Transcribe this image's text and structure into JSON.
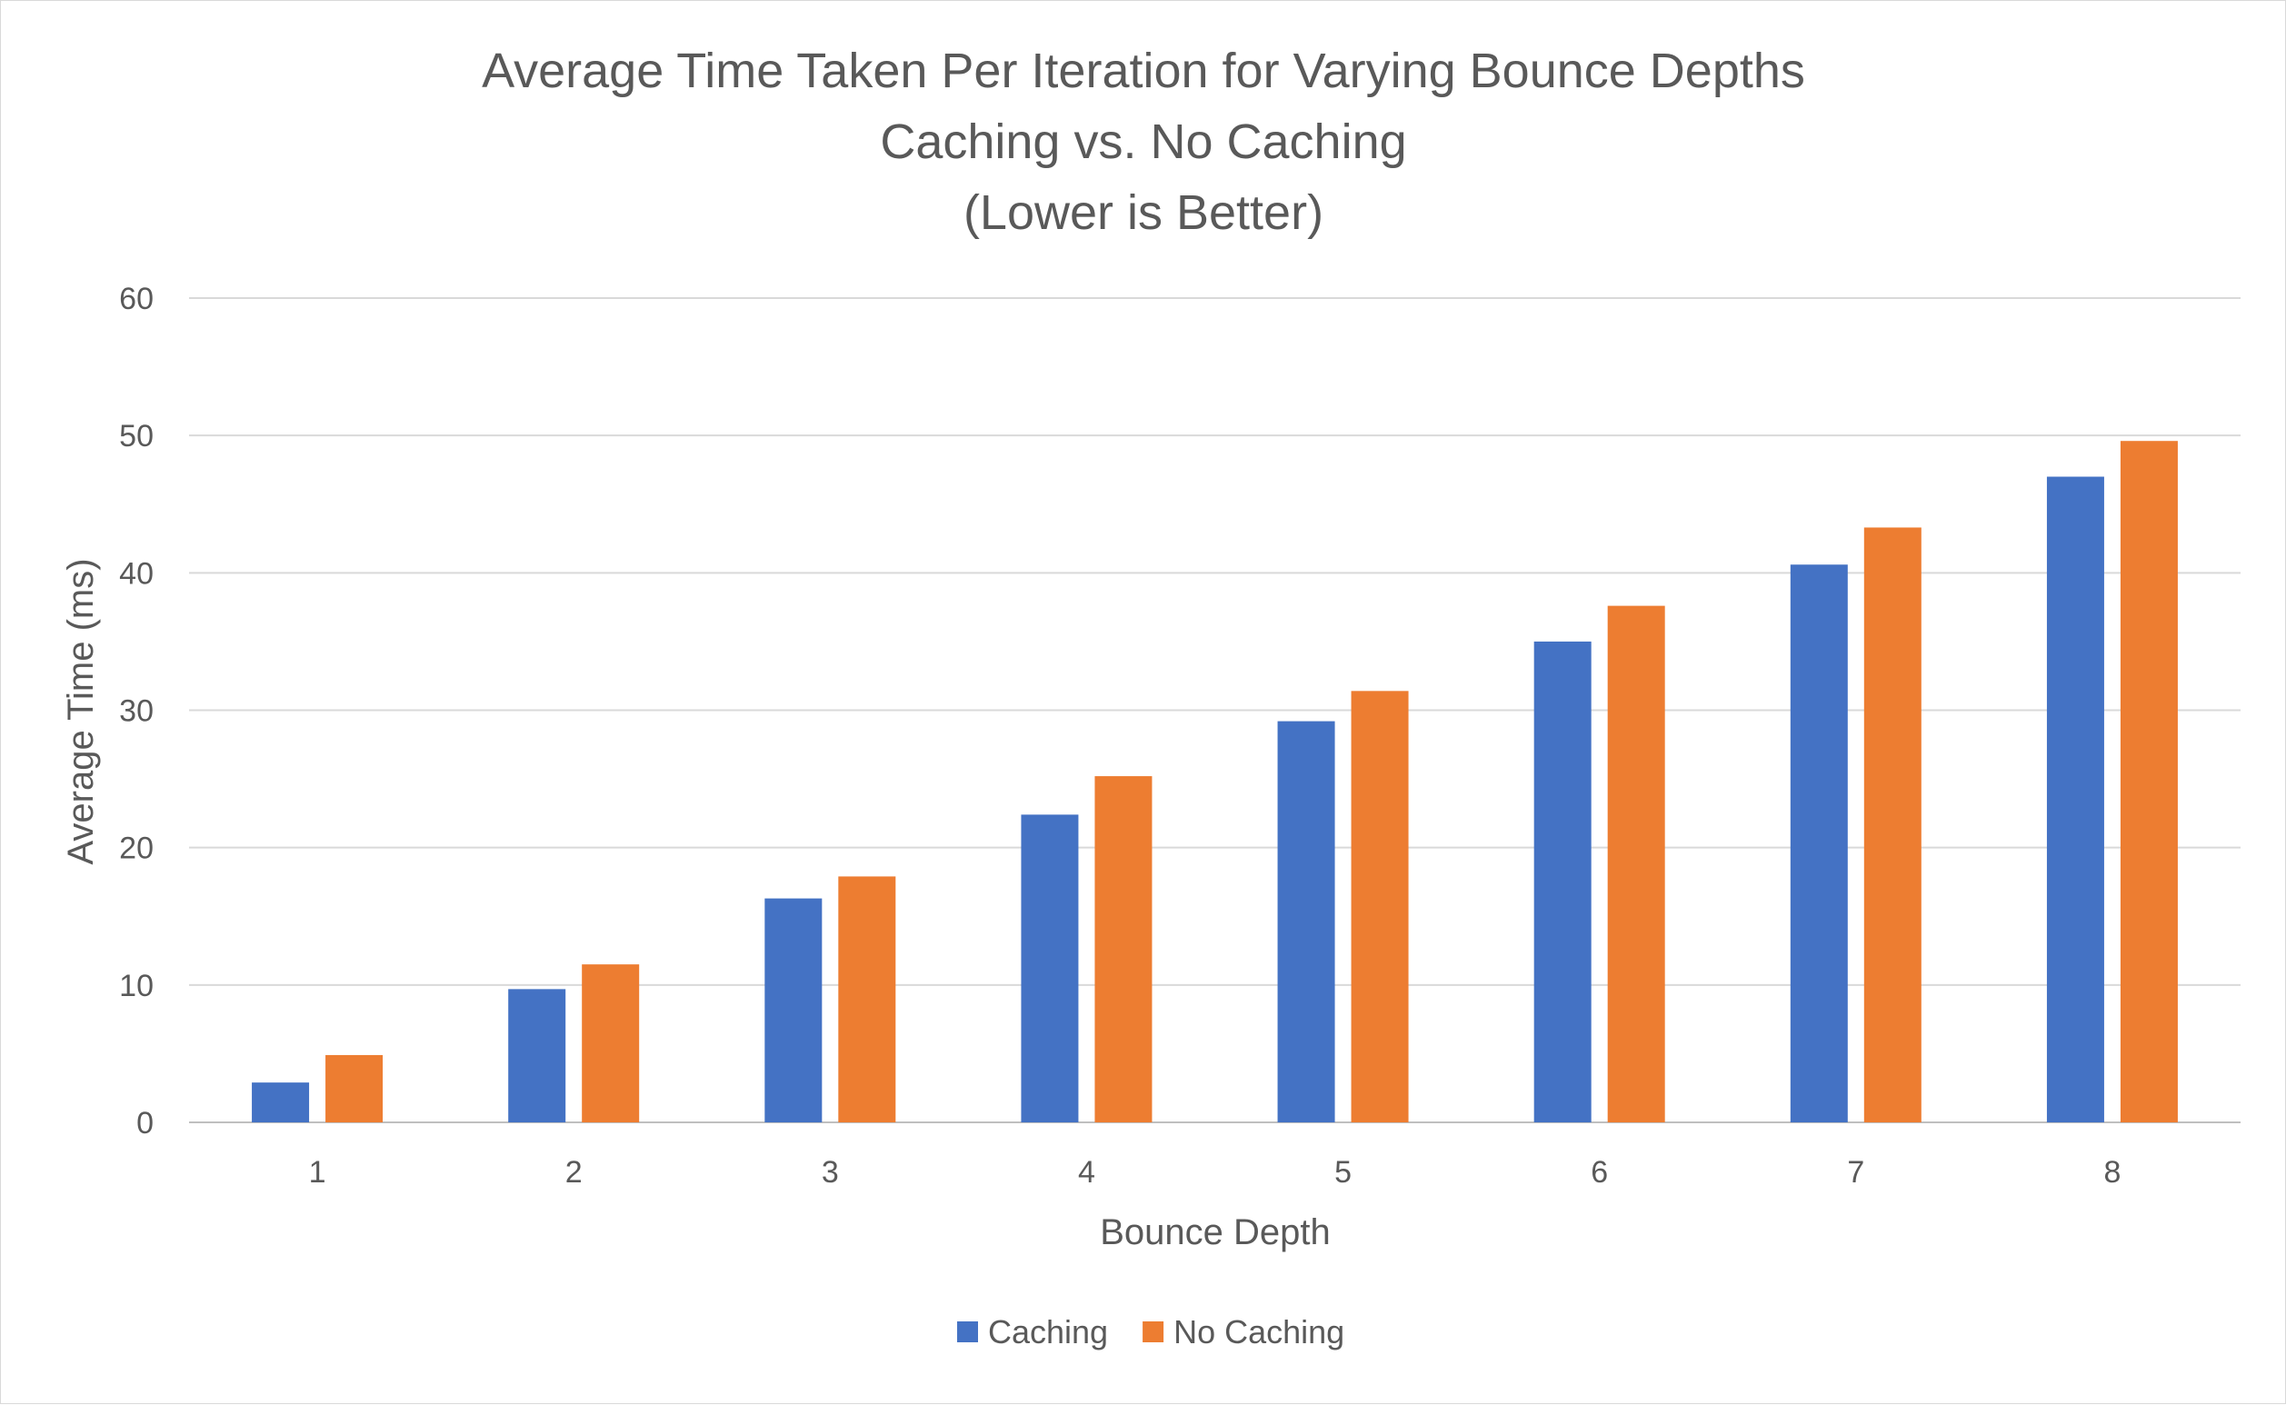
{
  "chart_data": {
    "type": "bar",
    "title": [
      "Average Time Taken Per Iteration for Varying Bounce Depths",
      "Caching vs. No Caching",
      "(Lower is Better)"
    ],
    "xlabel": "Bounce Depth",
    "ylabel": "Average Time (ms)",
    "categories": [
      "1",
      "2",
      "3",
      "4",
      "5",
      "6",
      "7",
      "8"
    ],
    "ylim": [
      0,
      60
    ],
    "yticks": [
      0,
      10,
      20,
      30,
      40,
      50,
      60
    ],
    "grid": true,
    "legend_position": "bottom",
    "series": [
      {
        "name": "Caching",
        "color": "#4472C4",
        "values": [
          2.9,
          9.7,
          16.3,
          22.4,
          29.2,
          35.0,
          40.6,
          47.0
        ]
      },
      {
        "name": "No Caching",
        "color": "#ED7D31",
        "values": [
          4.9,
          11.5,
          17.9,
          25.2,
          31.4,
          37.6,
          43.3,
          49.6
        ]
      }
    ]
  }
}
